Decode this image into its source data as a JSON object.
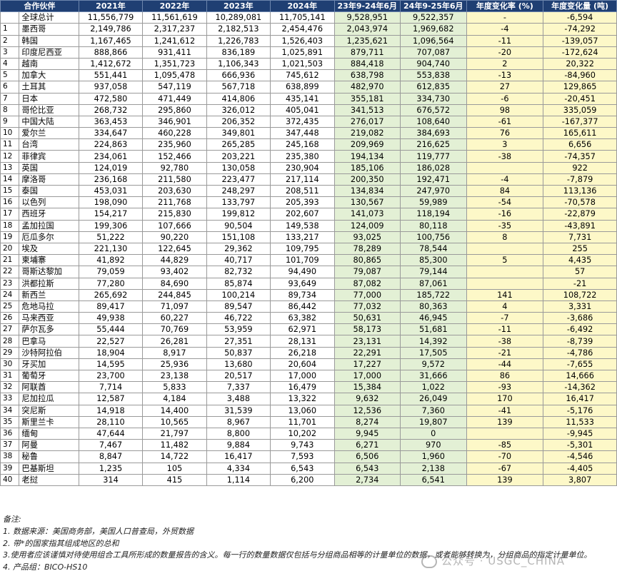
{
  "headers": [
    "合作伙伴",
    "2021年",
    "2022年",
    "2023年",
    "2024年",
    "23年9-24年6月",
    "24年9-25年6月",
    "年度变化率 (%)",
    "年度变化量 (吨)"
  ],
  "rows": [
    {
      "idx": "",
      "name": "全球总计",
      "y2021": "11,556,779",
      "y2022": "11,561,619",
      "y2023": "10,289,081",
      "y2024": "11,705,141",
      "p1": "9,528,951",
      "p2": "9,522,357",
      "pct": "-",
      "chg": "-6,594"
    },
    {
      "idx": "1",
      "name": "墨西哥",
      "y2021": "2,149,786",
      "y2022": "2,317,237",
      "y2023": "2,182,513",
      "y2024": "2,454,476",
      "p1": "2,043,974",
      "p2": "1,969,682",
      "pct": "-4",
      "chg": "-74,292"
    },
    {
      "idx": "2",
      "name": "韩国",
      "y2021": "1,167,465",
      "y2022": "1,241,612",
      "y2023": "1,226,783",
      "y2024": "1,526,403",
      "p1": "1,235,621",
      "p2": "1,096,564",
      "pct": "-11",
      "chg": "-139,057"
    },
    {
      "idx": "3",
      "name": "印度尼西亚",
      "y2021": "888,866",
      "y2022": "931,411",
      "y2023": "836,189",
      "y2024": "1,025,891",
      "p1": "879,711",
      "p2": "707,087",
      "pct": "-20",
      "chg": "-172,624"
    },
    {
      "idx": "4",
      "name": "越南",
      "y2021": "1,412,672",
      "y2022": "1,351,723",
      "y2023": "1,106,343",
      "y2024": "1,021,503",
      "p1": "884,418",
      "p2": "904,740",
      "pct": "2",
      "chg": "20,322"
    },
    {
      "idx": "5",
      "name": "加拿大",
      "y2021": "551,441",
      "y2022": "1,095,478",
      "y2023": "666,936",
      "y2024": "745,612",
      "p1": "638,798",
      "p2": "553,838",
      "pct": "-13",
      "chg": "-84,960"
    },
    {
      "idx": "6",
      "name": "土耳其",
      "y2021": "937,058",
      "y2022": "547,119",
      "y2023": "567,718",
      "y2024": "638,899",
      "p1": "482,970",
      "p2": "612,835",
      "pct": "27",
      "chg": "129,865"
    },
    {
      "idx": "7",
      "name": "日本",
      "y2021": "472,580",
      "y2022": "471,449",
      "y2023": "414,806",
      "y2024": "435,141",
      "p1": "355,181",
      "p2": "334,730",
      "pct": "-6",
      "chg": "-20,451"
    },
    {
      "idx": "8",
      "name": "哥伦比亚",
      "y2021": "268,732",
      "y2022": "295,860",
      "y2023": "326,012",
      "y2024": "405,041",
      "p1": "341,513",
      "p2": "676,572",
      "pct": "98",
      "chg": "335,059"
    },
    {
      "idx": "9",
      "name": "中国大陆",
      "y2021": "363,453",
      "y2022": "346,901",
      "y2023": "206,352",
      "y2024": "372,435",
      "p1": "276,017",
      "p2": "108,640",
      "pct": "-61",
      "chg": "-167,377"
    },
    {
      "idx": "10",
      "name": "爱尔兰",
      "y2021": "334,647",
      "y2022": "460,228",
      "y2023": "349,801",
      "y2024": "347,448",
      "p1": "219,082",
      "p2": "384,693",
      "pct": "76",
      "chg": "165,611"
    },
    {
      "idx": "11",
      "name": "台湾",
      "y2021": "224,863",
      "y2022": "235,960",
      "y2023": "265,285",
      "y2024": "245,168",
      "p1": "209,969",
      "p2": "216,625",
      "pct": "3",
      "chg": "6,656"
    },
    {
      "idx": "12",
      "name": "菲律宾",
      "y2021": "234,061",
      "y2022": "152,466",
      "y2023": "203,221",
      "y2024": "235,380",
      "p1": "194,134",
      "p2": "119,777",
      "pct": "-38",
      "chg": "-74,357"
    },
    {
      "idx": "13",
      "name": "英国",
      "y2021": "124,019",
      "y2022": "92,780",
      "y2023": "130,058",
      "y2024": "230,904",
      "p1": "185,106",
      "p2": "186,028",
      "pct": "",
      "chg": "922"
    },
    {
      "idx": "14",
      "name": "摩洛哥",
      "y2021": "236,168",
      "y2022": "211,580",
      "y2023": "223,477",
      "y2024": "217,114",
      "p1": "200,350",
      "p2": "192,471",
      "pct": "-4",
      "chg": "-7,879"
    },
    {
      "idx": "15",
      "name": "泰国",
      "y2021": "453,031",
      "y2022": "203,630",
      "y2023": "248,297",
      "y2024": "208,511",
      "p1": "134,834",
      "p2": "247,970",
      "pct": "84",
      "chg": "113,136"
    },
    {
      "idx": "16",
      "name": "以色列",
      "y2021": "198,090",
      "y2022": "211,768",
      "y2023": "133,797",
      "y2024": "205,393",
      "p1": "130,567",
      "p2": "59,989",
      "pct": "-54",
      "chg": "-70,578"
    },
    {
      "idx": "17",
      "name": "西班牙",
      "y2021": "154,217",
      "y2022": "215,830",
      "y2023": "199,812",
      "y2024": "202,607",
      "p1": "141,073",
      "p2": "118,194",
      "pct": "-16",
      "chg": "-22,879"
    },
    {
      "idx": "18",
      "name": "孟加拉国",
      "y2021": "199,306",
      "y2022": "107,666",
      "y2023": "90,504",
      "y2024": "149,538",
      "p1": "124,009",
      "p2": "80,118",
      "pct": "-35",
      "chg": "-43,891"
    },
    {
      "idx": "19",
      "name": "厄瓜多尔",
      "y2021": "51,222",
      "y2022": "90,220",
      "y2023": "151,108",
      "y2024": "133,217",
      "p1": "93,025",
      "p2": "100,756",
      "pct": "8",
      "chg": "7,731"
    },
    {
      "idx": "20",
      "name": "埃及",
      "y2021": "221,130",
      "y2022": "122,645",
      "y2023": "29,362",
      "y2024": "109,795",
      "p1": "78,289",
      "p2": "78,544",
      "pct": "",
      "chg": "255"
    },
    {
      "idx": "21",
      "name": "柬埔寨",
      "y2021": "41,892",
      "y2022": "44,829",
      "y2023": "40,717",
      "y2024": "101,709",
      "p1": "80,865",
      "p2": "85,300",
      "pct": "5",
      "chg": "4,435"
    },
    {
      "idx": "22",
      "name": "哥斯达黎加",
      "y2021": "79,059",
      "y2022": "93,402",
      "y2023": "82,732",
      "y2024": "94,490",
      "p1": "79,087",
      "p2": "79,144",
      "pct": "",
      "chg": "57"
    },
    {
      "idx": "23",
      "name": "洪都拉斯",
      "y2021": "77,280",
      "y2022": "84,690",
      "y2023": "85,874",
      "y2024": "93,649",
      "p1": "87,082",
      "p2": "87,061",
      "pct": "",
      "chg": "-21"
    },
    {
      "idx": "24",
      "name": "新西兰",
      "y2021": "265,692",
      "y2022": "244,845",
      "y2023": "100,214",
      "y2024": "89,734",
      "p1": "77,000",
      "p2": "185,722",
      "pct": "141",
      "chg": "108,722"
    },
    {
      "idx": "25",
      "name": "危地马拉",
      "y2021": "89,417",
      "y2022": "71,097",
      "y2023": "89,547",
      "y2024": "86,442",
      "p1": "77,032",
      "p2": "80,363",
      "pct": "4",
      "chg": "3,331"
    },
    {
      "idx": "26",
      "name": "马来西亚",
      "y2021": "49,938",
      "y2022": "60,227",
      "y2023": "46,722",
      "y2024": "63,382",
      "p1": "50,631",
      "p2": "46,945",
      "pct": "-7",
      "chg": "-3,686"
    },
    {
      "idx": "27",
      "name": "萨尔瓦多",
      "y2021": "55,444",
      "y2022": "70,769",
      "y2023": "53,959",
      "y2024": "62,971",
      "p1": "58,173",
      "p2": "51,681",
      "pct": "-11",
      "chg": "-6,492"
    },
    {
      "idx": "28",
      "name": "巴拿马",
      "y2021": "22,527",
      "y2022": "26,281",
      "y2023": "27,351",
      "y2024": "28,131",
      "p1": "23,131",
      "p2": "14,392",
      "pct": "-38",
      "chg": "-8,739"
    },
    {
      "idx": "29",
      "name": "沙特阿拉伯",
      "y2021": "18,904",
      "y2022": "8,917",
      "y2023": "50,837",
      "y2024": "26,218",
      "p1": "22,291",
      "p2": "17,505",
      "pct": "-21",
      "chg": "-4,786"
    },
    {
      "idx": "30",
      "name": "牙买加",
      "y2021": "14,595",
      "y2022": "25,936",
      "y2023": "13,680",
      "y2024": "20,604",
      "p1": "17,227",
      "p2": "9,572",
      "pct": "-44",
      "chg": "-7,655"
    },
    {
      "idx": "31",
      "name": "葡萄牙",
      "y2021": "23,700",
      "y2022": "23,138",
      "y2023": "20,517",
      "y2024": "17,000",
      "p1": "17,000",
      "p2": "31,666",
      "pct": "86",
      "chg": "14,666"
    },
    {
      "idx": "32",
      "name": "阿联酋",
      "y2021": "7,714",
      "y2022": "5,833",
      "y2023": "7,337",
      "y2024": "16,479",
      "p1": "15,384",
      "p2": "1,022",
      "pct": "-93",
      "chg": "-14,362"
    },
    {
      "idx": "33",
      "name": "尼加拉瓜",
      "y2021": "12,587",
      "y2022": "4,184",
      "y2023": "3,488",
      "y2024": "13,322",
      "p1": "9,632",
      "p2": "26,049",
      "pct": "170",
      "chg": "16,417"
    },
    {
      "idx": "34",
      "name": "突尼斯",
      "y2021": "14,918",
      "y2022": "14,400",
      "y2023": "31,539",
      "y2024": "13,060",
      "p1": "12,536",
      "p2": "7,360",
      "pct": "-41",
      "chg": "-5,176"
    },
    {
      "idx": "35",
      "name": "斯里兰卡",
      "y2021": "28,110",
      "y2022": "10,565",
      "y2023": "8,967",
      "y2024": "11,701",
      "p1": "8,274",
      "p2": "19,807",
      "pct": "139",
      "chg": "11,533"
    },
    {
      "idx": "36",
      "name": "缅甸",
      "y2021": "47,644",
      "y2022": "21,797",
      "y2023": "8,800",
      "y2024": "10,202",
      "p1": "9,945",
      "p2": "0",
      "pct": "",
      "chg": "-9,945"
    },
    {
      "idx": "37",
      "name": "阿曼",
      "y2021": "7,467",
      "y2022": "11,482",
      "y2023": "9,884",
      "y2024": "9,743",
      "p1": "6,271",
      "p2": "970",
      "pct": "-85",
      "chg": "-5,301"
    },
    {
      "idx": "38",
      "name": "秘鲁",
      "y2021": "8,847",
      "y2022": "14,722",
      "y2023": "16,417",
      "y2024": "7,593",
      "p1": "6,506",
      "p2": "1,960",
      "pct": "-70",
      "chg": "-4,546"
    },
    {
      "idx": "39",
      "name": "巴基斯坦",
      "y2021": "1,235",
      "y2022": "105",
      "y2023": "4,334",
      "y2024": "6,543",
      "p1": "6,543",
      "p2": "2,138",
      "pct": "-67",
      "chg": "-4,405"
    },
    {
      "idx": "40",
      "name": "老挝",
      "y2021": "314",
      "y2022": "415",
      "y2023": "1,114",
      "y2024": "6,200",
      "p1": "2,734",
      "p2": "6,541",
      "pct": "139",
      "chg": "3,807"
    }
  ],
  "notes": [
    "备注:",
    "1. 数据来源：美国商务部，美国人口普查局，外贸数据",
    "2. 带*的国家指其组成地区的总和",
    "3.使用者应该谨慎对待使用组合工具所形成的数量报告的含义。每一行的数量数据仅包括与分组商品相等的计量单位的数据，或者能够转换为，分组商品的指定计量单位。",
    "4. 产品组：BICO-HS10"
  ],
  "watermark": "公众号 · USGC_CHINA",
  "colors": {
    "header_bg": "#1f3f73",
    "period_bg": "#e3f0d5",
    "change_bg": "#fdf8c8"
  }
}
